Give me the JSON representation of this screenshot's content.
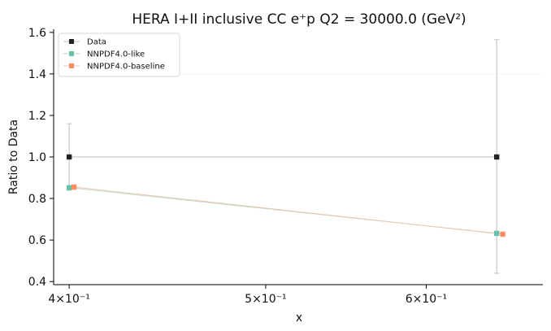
{
  "chart_data": {
    "type": "line",
    "title": "HERA I+II inclusive CC e⁺p Q2 = 30000.0 (GeV²)",
    "xlabel": "x",
    "ylabel": "Ratio to Data",
    "x_scale": "log",
    "xlim": [
      0.393,
      0.685
    ],
    "ylim": [
      0.385,
      1.615
    ],
    "x_ticks": [
      {
        "value": 0.4,
        "label": "4×10⁻¹"
      },
      {
        "value": 0.5,
        "label": "5×10⁻¹"
      },
      {
        "value": 0.6,
        "label": "6×10⁻¹"
      }
    ],
    "y_ticks": [
      {
        "value": 0.4,
        "label": "0.4"
      },
      {
        "value": 0.6,
        "label": "0.6"
      },
      {
        "value": 0.8,
        "label": "0.8"
      },
      {
        "value": 1.0,
        "label": "1.0"
      },
      {
        "value": 1.2,
        "label": "1.2"
      },
      {
        "value": 1.4,
        "label": "1.4"
      },
      {
        "value": 1.6,
        "label": "1.6"
      }
    ],
    "legend_position": "top-left",
    "grid": false,
    "series": [
      {
        "name": "Data",
        "color": "#222222",
        "line_color": "#bbbbbb",
        "marker": "square",
        "points": [
          {
            "x": 0.4,
            "y": 1.0,
            "err_low": 0.84,
            "err_high": 1.16
          },
          {
            "x": 0.65,
            "y": 1.0,
            "err_low": 0.44,
            "err_high": 1.565
          }
        ]
      },
      {
        "name": "NNPDF4.0-like",
        "color": "#66c2a5",
        "line_color": "#c9d9c9",
        "marker": "square",
        "points": [
          {
            "x": 0.4,
            "y": 0.852
          },
          {
            "x": 0.65,
            "y": 0.632
          }
        ]
      },
      {
        "name": "NNPDF4.0-baseline",
        "color": "#fc8d62",
        "line_color": "#e3c8b4",
        "marker": "square",
        "points": [
          {
            "x": 0.4022,
            "y": 0.855
          },
          {
            "x": 0.6545,
            "y": 0.628
          }
        ]
      }
    ]
  }
}
